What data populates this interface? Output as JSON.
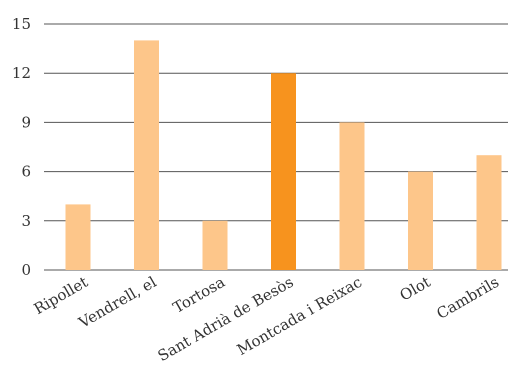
{
  "chart_data": {
    "type": "bar",
    "title": "",
    "xlabel": "",
    "ylabel": "",
    "categories": [
      "Ripollet",
      "Vendrell, el",
      "Tortosa",
      "Sant Adrià de Besòs",
      "Montcada i Reixac",
      "Olot",
      "Cambrils"
    ],
    "values": [
      4,
      14,
      3,
      12,
      9,
      6,
      7
    ],
    "highlight_index": 3,
    "ylim": [
      0,
      15
    ],
    "yticks": [
      "0",
      "3",
      "6",
      "9",
      "12",
      "15"
    ],
    "grid": true,
    "colors": {
      "bar": "#FDC68A",
      "highlight": "#F7931E",
      "grid": "#555555"
    }
  }
}
